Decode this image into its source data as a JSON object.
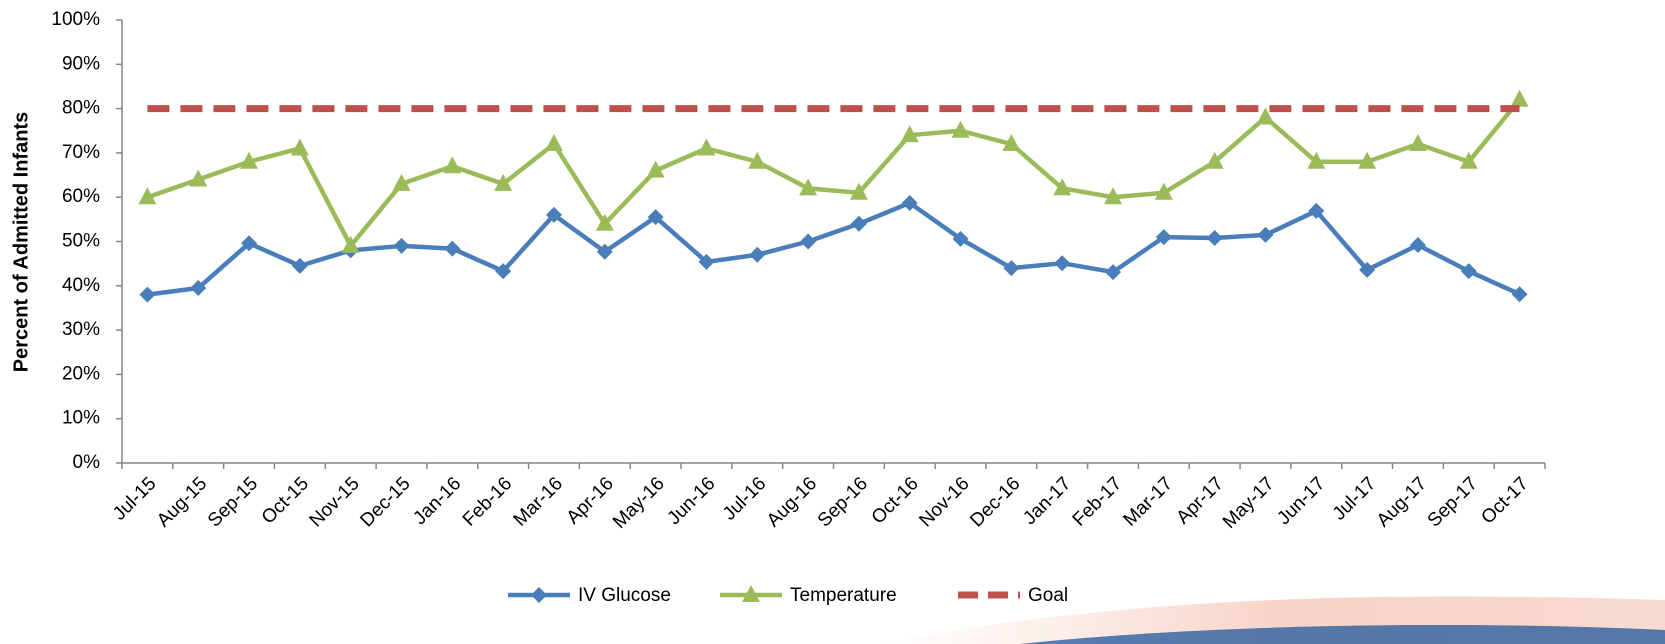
{
  "chart_data": {
    "type": "line",
    "y_label": "Percent of Admitted Infants",
    "categories": [
      "Jul-15",
      "Aug-15",
      "Sep-15",
      "Oct-15",
      "Nov-15",
      "Dec-15",
      "Jan-16",
      "Feb-16",
      "Mar-16",
      "Apr-16",
      "May-16",
      "Jun-16",
      "Jul-16",
      "Aug-16",
      "Sep-16",
      "Oct-16",
      "Nov-16",
      "Dec-16",
      "Jan-17",
      "Feb-17",
      "Mar-17",
      "Apr-17",
      "May-17",
      "Jun-17",
      "Jul-17",
      "Aug-17",
      "Sep-17",
      "Oct-17"
    ],
    "series": [
      {
        "name": "IV Glucose",
        "color": "#4a7ebb",
        "marker": "diamond",
        "values": [
          38,
          39.5,
          49.6,
          44.5,
          48,
          49,
          48.4,
          43.3,
          56,
          47.7,
          55.5,
          45.4,
          47,
          50,
          54,
          58.7,
          50.6,
          44,
          45.1,
          43.1,
          51,
          50.8,
          51.5,
          56.9,
          43.6,
          49.2,
          43.3,
          38.1
        ]
      },
      {
        "name": "Temperature",
        "color": "#9bbb59",
        "marker": "triangle",
        "values": [
          60,
          64,
          68,
          71,
          49,
          63,
          67,
          63,
          72,
          54,
          66,
          71,
          68,
          62,
          61,
          74,
          75,
          72,
          62,
          60,
          61,
          68,
          78,
          68,
          68,
          72,
          68,
          82
        ]
      },
      {
        "name": "Goal",
        "color": "#c0504d",
        "dashed": true,
        "values": [
          80,
          80,
          80,
          80,
          80,
          80,
          80,
          80,
          80,
          80,
          80,
          80,
          80,
          80,
          80,
          80,
          80,
          80,
          80,
          80,
          80,
          80,
          80,
          80,
          80,
          80,
          80,
          80
        ]
      }
    ],
    "ylim": [
      0,
      100
    ],
    "yticks": [
      {
        "value": 0,
        "label": "0%"
      },
      {
        "value": 10,
        "label": "10%"
      },
      {
        "value": 20,
        "label": "20%"
      },
      {
        "value": 30,
        "label": "30%"
      },
      {
        "value": 40,
        "label": "40%"
      },
      {
        "value": 50,
        "label": "50%"
      },
      {
        "value": 60,
        "label": "60%"
      },
      {
        "value": 70,
        "label": "70%"
      },
      {
        "value": 80,
        "label": "80%"
      },
      {
        "value": 90,
        "label": "90%"
      },
      {
        "value": 100,
        "label": "100%"
      }
    ],
    "grid": false
  }
}
